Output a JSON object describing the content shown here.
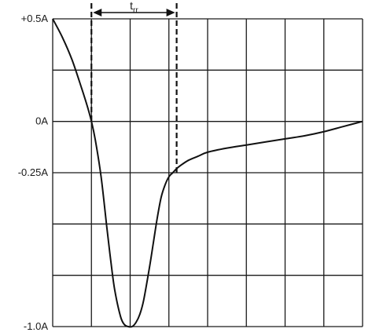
{
  "chart_data": {
    "type": "line",
    "title": "",
    "xlabel": "",
    "ylabel": "",
    "ylim": [
      -1.0,
      0.5
    ],
    "xlim": [
      0,
      8
    ],
    "grid": true,
    "y_ticks": [
      {
        "value": 0.5,
        "label": "+0.5A"
      },
      {
        "value": 0,
        "label": "0A"
      },
      {
        "value": -0.25,
        "label": "-0.25A"
      },
      {
        "value": -1.0,
        "label": "-1.0A"
      }
    ],
    "series": [
      {
        "x": [
          0,
          0.25,
          0.5,
          0.75,
          0.9,
          1.0,
          1.1,
          1.25,
          1.4,
          1.5,
          1.6,
          1.75,
          1.85,
          1.95,
          2.05,
          2.15,
          2.25,
          2.35,
          2.5,
          2.6,
          2.7,
          2.8,
          2.9,
          3.0,
          3.1,
          3.2,
          3.3,
          3.5,
          3.75,
          4.0,
          4.5,
          5.0,
          5.5,
          6.0,
          6.5,
          7.0,
          7.5,
          8.0
        ],
        "y": [
          0.5,
          0.41,
          0.3,
          0.16,
          0.07,
          0.0,
          -0.09,
          -0.27,
          -0.52,
          -0.68,
          -0.82,
          -0.95,
          -0.99,
          -1.0,
          -1.0,
          -0.98,
          -0.94,
          -0.87,
          -0.71,
          -0.59,
          -0.47,
          -0.37,
          -0.31,
          -0.27,
          -0.25,
          -0.23,
          -0.215,
          -0.19,
          -0.17,
          -0.15,
          -0.13,
          -0.115,
          -0.1,
          -0.085,
          -0.07,
          -0.05,
          -0.025,
          0.0
        ]
      }
    ],
    "annotation": {
      "text": "t",
      "subscript": "rr",
      "x_start": 1.0,
      "x_end": 3.2
    }
  }
}
